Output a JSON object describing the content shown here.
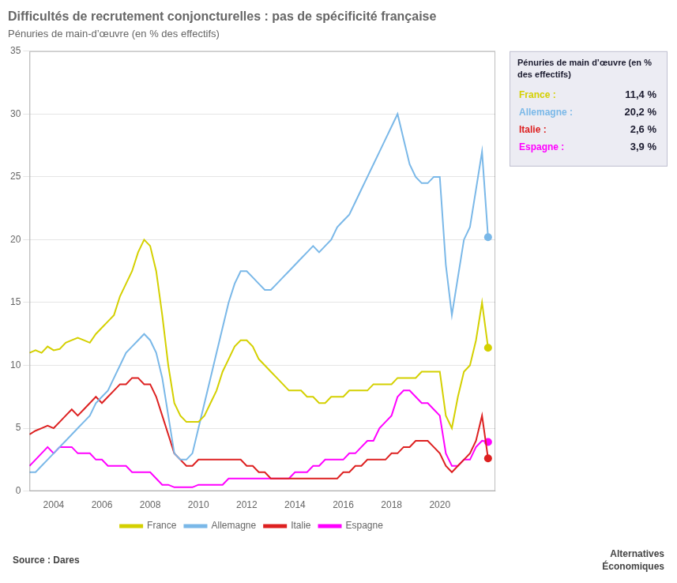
{
  "chart_data": {
    "type": "line",
    "title": "Difficultés de recrutement conjoncturelles : pas de spécificité française",
    "subtitle": "Pénuries de main-d’œuvre (en % des effectifs)",
    "source": "Source : Dares",
    "branding": "Alternatives\nÉconomiques",
    "x": [
      2003.0,
      2003.25,
      2003.5,
      2003.75,
      2004.0,
      2004.25,
      2004.5,
      2004.75,
      2005.0,
      2005.25,
      2005.5,
      2005.75,
      2006.0,
      2006.25,
      2006.5,
      2006.75,
      2007.0,
      2007.25,
      2007.5,
      2007.75,
      2008.0,
      2008.25,
      2008.5,
      2008.75,
      2009.0,
      2009.25,
      2009.5,
      2009.75,
      2010.0,
      2010.25,
      2010.5,
      2010.75,
      2011.0,
      2011.25,
      2011.5,
      2011.75,
      2012.0,
      2012.25,
      2012.5,
      2012.75,
      2013.0,
      2013.25,
      2013.5,
      2013.75,
      2014.0,
      2014.25,
      2014.5,
      2014.75,
      2015.0,
      2015.25,
      2015.5,
      2015.75,
      2016.0,
      2016.25,
      2016.5,
      2016.75,
      2017.0,
      2017.25,
      2017.5,
      2017.75,
      2018.0,
      2018.25,
      2018.5,
      2018.75,
      2019.0,
      2019.25,
      2019.5,
      2019.75,
      2020.0,
      2020.25,
      2020.5,
      2020.75,
      2021.0,
      2021.25,
      2021.5,
      2021.75,
      2022.0
    ],
    "series": [
      {
        "name": "France",
        "color": "#d4d000",
        "values": [
          11.0,
          11.2,
          11.0,
          11.5,
          11.2,
          11.3,
          11.8,
          12.0,
          12.2,
          12.0,
          11.8,
          12.5,
          13.0,
          13.5,
          14.0,
          15.5,
          16.5,
          17.5,
          19.0,
          20.0,
          19.5,
          17.5,
          14.0,
          10.0,
          7.0,
          6.0,
          5.5,
          5.5,
          5.5,
          6.0,
          7.0,
          8.0,
          9.5,
          10.5,
          11.5,
          12.0,
          12.0,
          11.5,
          10.5,
          10.0,
          9.5,
          9.0,
          8.5,
          8.0,
          8.0,
          8.0,
          7.5,
          7.5,
          7.0,
          7.0,
          7.5,
          7.5,
          7.5,
          8.0,
          8.0,
          8.0,
          8.0,
          8.5,
          8.5,
          8.5,
          8.5,
          9.0,
          9.0,
          9.0,
          9.0,
          9.5,
          9.5,
          9.5,
          9.5,
          6.0,
          5.0,
          7.5,
          9.5,
          10.0,
          12.0,
          15.0,
          11.4
        ]
      },
      {
        "name": "Allemagne",
        "color": "#7ab8e8",
        "values": [
          1.5,
          1.5,
          2.0,
          2.5,
          3.0,
          3.5,
          4.0,
          4.5,
          5.0,
          5.5,
          6.0,
          7.0,
          7.5,
          8.0,
          9.0,
          10.0,
          11.0,
          11.5,
          12.0,
          12.5,
          12.0,
          11.0,
          9.0,
          6.0,
          3.0,
          2.5,
          2.5,
          3.0,
          5.0,
          7.0,
          9.0,
          11.0,
          13.0,
          15.0,
          16.5,
          17.5,
          17.5,
          17.0,
          16.5,
          16.0,
          16.0,
          16.5,
          17.0,
          17.5,
          18.0,
          18.5,
          19.0,
          19.5,
          19.0,
          19.5,
          20.0,
          21.0,
          21.5,
          22.0,
          23.0,
          24.0,
          25.0,
          26.0,
          27.0,
          28.0,
          29.0,
          30.0,
          28.0,
          26.0,
          25.0,
          24.5,
          24.5,
          25.0,
          25.0,
          18.0,
          14.0,
          17.0,
          20.0,
          21.0,
          24.0,
          27.0,
          20.2
        ]
      },
      {
        "name": "Italie",
        "color": "#dd2020",
        "values": [
          4.5,
          4.8,
          5.0,
          5.2,
          5.0,
          5.5,
          6.0,
          6.5,
          6.0,
          6.5,
          7.0,
          7.5,
          7.0,
          7.5,
          8.0,
          8.5,
          8.5,
          9.0,
          9.0,
          8.5,
          8.5,
          7.5,
          6.0,
          4.5,
          3.0,
          2.5,
          2.0,
          2.0,
          2.5,
          2.5,
          2.5,
          2.5,
          2.5,
          2.5,
          2.5,
          2.5,
          2.0,
          2.0,
          1.5,
          1.5,
          1.0,
          1.0,
          1.0,
          1.0,
          1.0,
          1.0,
          1.0,
          1.0,
          1.0,
          1.0,
          1.0,
          1.0,
          1.5,
          1.5,
          2.0,
          2.0,
          2.5,
          2.5,
          2.5,
          2.5,
          3.0,
          3.0,
          3.5,
          3.5,
          4.0,
          4.0,
          4.0,
          3.5,
          3.0,
          2.0,
          1.5,
          2.0,
          2.5,
          3.0,
          4.0,
          6.0,
          2.6
        ]
      },
      {
        "name": "Espagne",
        "color": "#ff00ff",
        "values": [
          2.0,
          2.5,
          3.0,
          3.5,
          3.0,
          3.5,
          3.5,
          3.5,
          3.0,
          3.0,
          3.0,
          2.5,
          2.5,
          2.0,
          2.0,
          2.0,
          2.0,
          1.5,
          1.5,
          1.5,
          1.5,
          1.0,
          0.5,
          0.5,
          0.3,
          0.3,
          0.3,
          0.3,
          0.5,
          0.5,
          0.5,
          0.5,
          0.5,
          1.0,
          1.0,
          1.0,
          1.0,
          1.0,
          1.0,
          1.0,
          1.0,
          1.0,
          1.0,
          1.0,
          1.5,
          1.5,
          1.5,
          2.0,
          2.0,
          2.5,
          2.5,
          2.5,
          2.5,
          3.0,
          3.0,
          3.5,
          4.0,
          4.0,
          5.0,
          5.5,
          6.0,
          7.5,
          8.0,
          8.0,
          7.5,
          7.0,
          7.0,
          6.5,
          6.0,
          3.0,
          2.0,
          2.0,
          2.5,
          2.5,
          3.5,
          4.0,
          3.9
        ]
      }
    ],
    "xlim": [
      2003.0,
      2022.3
    ],
    "xticks": [
      2004,
      2006,
      2008,
      2010,
      2012,
      2014,
      2016,
      2018,
      2020
    ],
    "ylim": [
      0,
      35
    ],
    "yticks": [
      0,
      5,
      10,
      15,
      20,
      25,
      30,
      35
    ],
    "grid": "y",
    "legend": "bottom",
    "annotations": [
      {
        "title": "Pénuries de main d’œuvre (en % des effectifs)",
        "rows": [
          {
            "label": "France :",
            "value_label": "11,4 %",
            "color": "#d4d000"
          },
          {
            "label": "Allemagne :",
            "value_label": "20,2 %",
            "color": "#7ab8e8"
          },
          {
            "label": "Italie :",
            "value_label": "2,6 %",
            "color": "#dd2020"
          },
          {
            "label": "Espagne :",
            "value_label": "3,9 %",
            "color": "#ff00ff"
          }
        ]
      }
    ]
  }
}
